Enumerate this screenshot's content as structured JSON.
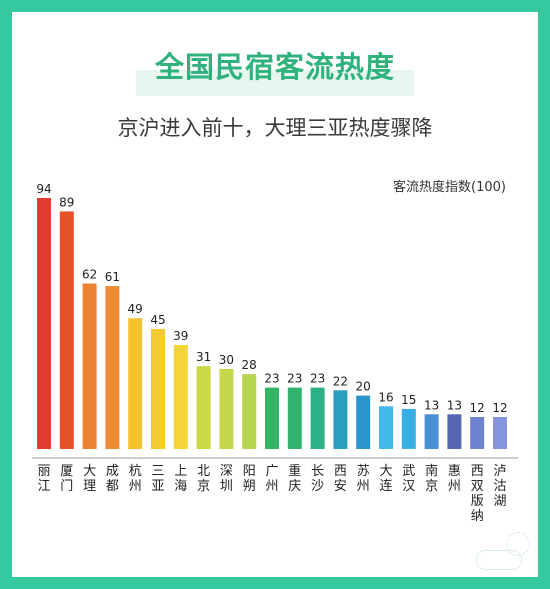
{
  "title": "全国民宿客流热度",
  "subtitle": "京沪进入前十，大理三亚热度骤降",
  "chart_data": {
    "type": "bar",
    "title": "全国民宿客流热度",
    "subtitle": "京沪进入前十，大理三亚热度骤降",
    "ylabel": "客流热度指数(100)",
    "ylim": [
      0,
      100
    ],
    "categories": [
      "丽江",
      "厦门",
      "大理",
      "成都",
      "杭州",
      "三亚",
      "上海",
      "北京",
      "深圳",
      "阳朔",
      "广州",
      "重庆",
      "长沙",
      "西安",
      "苏州",
      "大连",
      "武汉",
      "南京",
      "惠州",
      "西双版纳",
      "泸沽湖"
    ],
    "values": [
      94,
      89,
      62,
      61,
      49,
      45,
      39,
      31,
      30,
      28,
      23,
      23,
      23,
      22,
      20,
      16,
      15,
      13,
      13,
      12,
      12
    ],
    "colors": [
      "#e13a2f",
      "#e6532a",
      "#ec8232",
      "#ef8c33",
      "#f4c22f",
      "#f4cb32",
      "#f3d53a",
      "#cad847",
      "#c6d74b",
      "#b6d44d",
      "#33b563",
      "#31b36e",
      "#2bb088",
      "#2a9fbe",
      "#2b94c8",
      "#42b9ea",
      "#39aee4",
      "#4a8fd6",
      "#5566b3",
      "#6f82cf",
      "#8494dd"
    ],
    "grid": false,
    "legend": "none"
  }
}
